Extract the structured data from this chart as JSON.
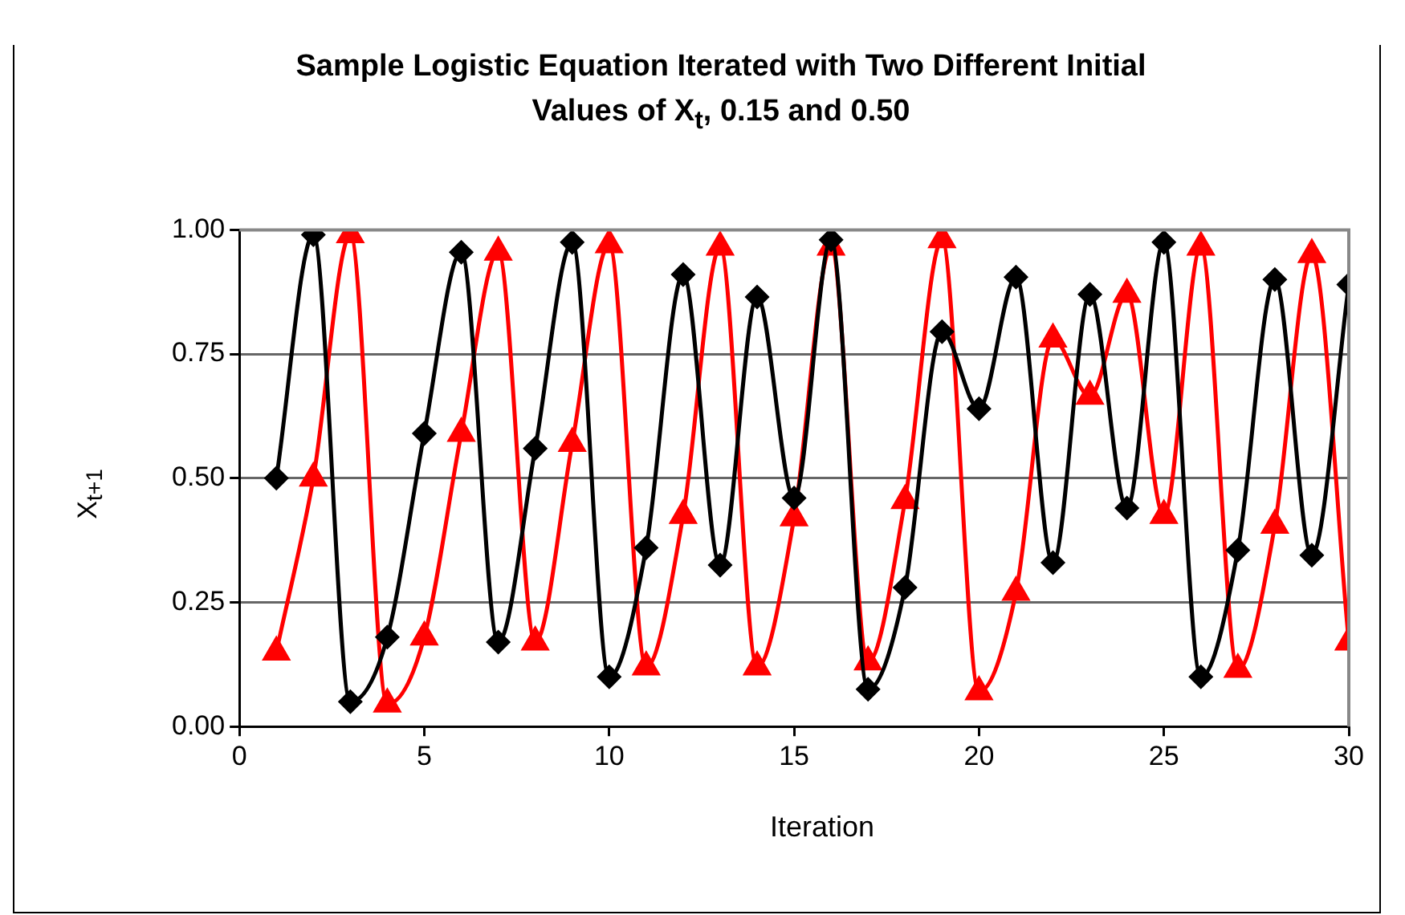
{
  "chart_data": {
    "type": "line",
    "title": "Sample Logistic Equation Iterated with Two Different Initial Values of X$_{t}$, 0.15 and 0.50",
    "xlabel": "Iteration",
    "ylabel": "X$_{t+1}$",
    "x": [
      1,
      2,
      3,
      4,
      5,
      6,
      7,
      8,
      9,
      10,
      11,
      12,
      13,
      14,
      15,
      16,
      17,
      18,
      19,
      20,
      21,
      22,
      23,
      24,
      25,
      26,
      27,
      28,
      29,
      30
    ],
    "series": [
      {
        "color": "#000000",
        "marker": "diamond",
        "values": [
          0.5,
          0.99,
          0.05,
          0.18,
          0.59,
          0.955,
          0.17,
          0.56,
          0.975,
          0.1,
          0.36,
          0.91,
          0.325,
          0.865,
          0.46,
          0.98,
          0.075,
          0.28,
          0.795,
          0.64,
          0.905,
          0.33,
          0.87,
          0.44,
          0.975,
          0.1,
          0.355,
          0.9,
          0.345,
          0.89
        ]
      },
      {
        "color": "#ff0000",
        "marker": "triangle",
        "values": [
          0.15,
          0.5,
          0.99,
          0.045,
          0.18,
          0.59,
          0.955,
          0.17,
          0.57,
          0.97,
          0.12,
          0.425,
          0.965,
          0.12,
          0.42,
          0.965,
          0.13,
          0.455,
          0.98,
          0.07,
          0.27,
          0.78,
          0.665,
          0.87,
          0.425,
          0.965,
          0.115,
          0.405,
          0.95,
          0.17
        ]
      }
    ],
    "xlim": [
      0,
      30
    ],
    "xticks": [
      0,
      5,
      10,
      15,
      20,
      25,
      30
    ],
    "ylim": [
      0,
      1
    ],
    "yticks": [
      {
        "value": 0,
        "label": "0.00"
      },
      {
        "value": 0.25,
        "label": "0.25"
      },
      {
        "value": 0.5,
        "label": "0.50"
      },
      {
        "value": 0.75,
        "label": "0.75"
      },
      {
        "value": 1,
        "label": "1.00"
      }
    ],
    "grid": "y",
    "legend": false,
    "line_style": "solid"
  }
}
